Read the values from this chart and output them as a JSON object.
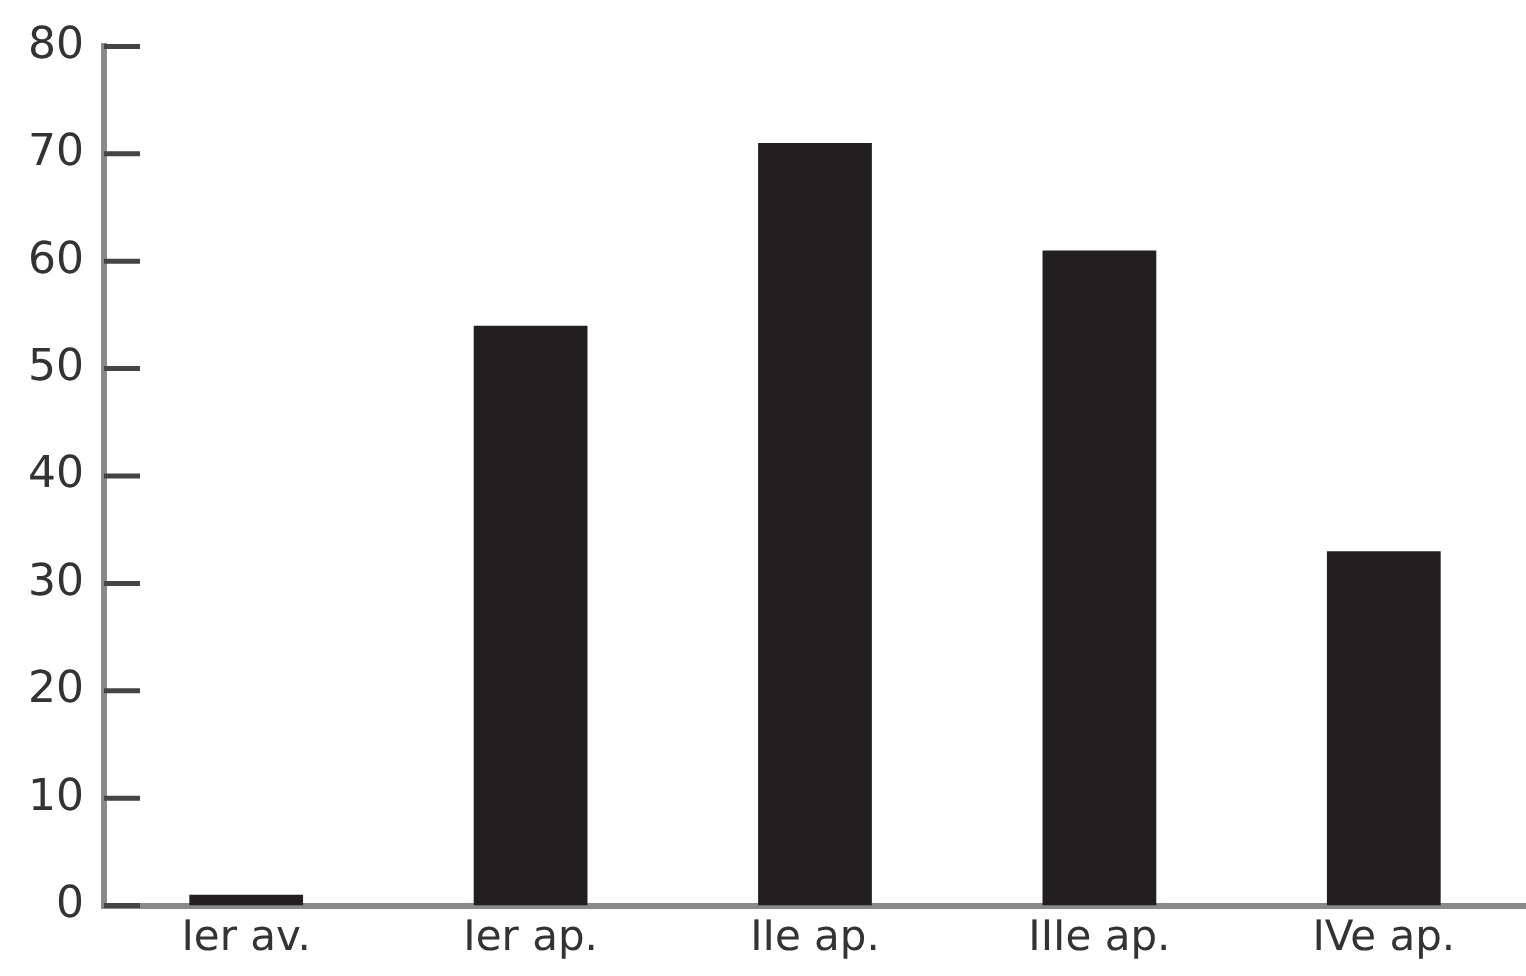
{
  "chart_data": {
    "type": "bar",
    "categories": [
      "Ier av.",
      "Ier ap.",
      "IIe ap.",
      "IIIe ap.",
      "IVe ap."
    ],
    "values": [
      1,
      54,
      71,
      61,
      33
    ],
    "color": "#231f20",
    "ylim": [
      0,
      80
    ],
    "yticks": [
      0,
      10,
      20,
      30,
      40,
      50,
      60,
      70,
      80
    ],
    "grid": false,
    "legend": false
  }
}
